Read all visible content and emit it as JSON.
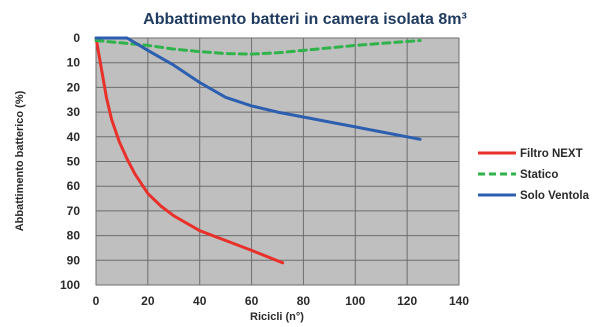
{
  "chart_data": {
    "type": "line",
    "title": "Abbattimento batteri in camera isolata 8m³",
    "xlabel": "Ricicli (n°)",
    "ylabel": "Abbattimento batterico (%)",
    "xlim": [
      0,
      140
    ],
    "ylim": [
      0,
      100
    ],
    "y_inverted": true,
    "grid": true,
    "legend_position": "right",
    "x_ticks": [
      0,
      20,
      40,
      60,
      80,
      100,
      120,
      140
    ],
    "y_ticks": [
      0,
      10,
      20,
      30,
      40,
      50,
      60,
      70,
      80,
      90,
      100
    ],
    "series": [
      {
        "name": "Filtro NEXT",
        "color": "#e8312a",
        "style": "solid",
        "points": [
          [
            0,
            0
          ],
          [
            2,
            12
          ],
          [
            4,
            24
          ],
          [
            6,
            33
          ],
          [
            9,
            42
          ],
          [
            12,
            49
          ],
          [
            15,
            55
          ],
          [
            20,
            63
          ],
          [
            25,
            68
          ],
          [
            30,
            72
          ],
          [
            40,
            78
          ],
          [
            50,
            82
          ],
          [
            60,
            86
          ],
          [
            72,
            91
          ]
        ]
      },
      {
        "name": "Statico",
        "color": "#2fb34a",
        "style": "dashed",
        "points": [
          [
            0,
            1
          ],
          [
            10,
            2
          ],
          [
            20,
            3
          ],
          [
            30,
            4.5
          ],
          [
            40,
            5.5
          ],
          [
            50,
            6.3
          ],
          [
            60,
            6.5
          ],
          [
            70,
            6
          ],
          [
            80,
            5
          ],
          [
            90,
            4
          ],
          [
            100,
            3
          ],
          [
            110,
            2.2
          ],
          [
            125,
            1
          ]
        ]
      },
      {
        "name": "Solo Ventola",
        "color": "#2d5fb0",
        "style": "solid",
        "points": [
          [
            0,
            0
          ],
          [
            12,
            0
          ],
          [
            20,
            5
          ],
          [
            30,
            11
          ],
          [
            40,
            18
          ],
          [
            50,
            24
          ],
          [
            60,
            27.5
          ],
          [
            70,
            30
          ],
          [
            80,
            32
          ],
          [
            90,
            34
          ],
          [
            100,
            36
          ],
          [
            110,
            38
          ],
          [
            125,
            41
          ]
        ]
      }
    ]
  }
}
